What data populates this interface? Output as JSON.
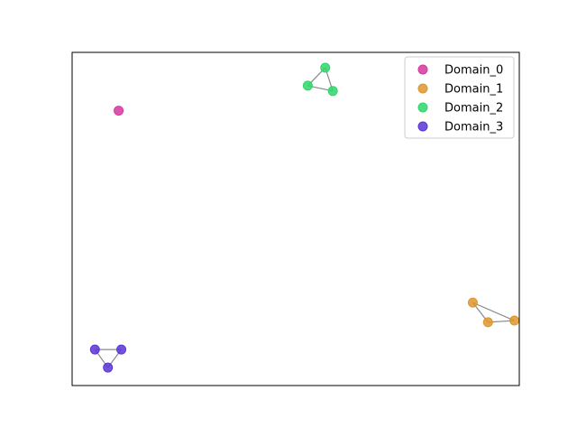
{
  "chart_data": {
    "type": "scatter",
    "title": "",
    "xlabel": "",
    "ylabel": "",
    "axes_visible": false,
    "grid": false,
    "xlim": [
      0,
      10
    ],
    "ylim": [
      0,
      10
    ],
    "legend": {
      "placement": "top-right",
      "entries": [
        "Domain_0",
        "Domain_1",
        "Domain_2",
        "Domain_3"
      ]
    },
    "series": [
      {
        "name": "Domain_0",
        "color": "#d6379f",
        "points": [
          [
            1.04,
            8.25
          ]
        ]
      },
      {
        "name": "Domain_1",
        "color": "#de962e",
        "points": [
          [
            8.96,
            2.49
          ],
          [
            9.3,
            1.9
          ],
          [
            9.89,
            1.95
          ]
        ]
      },
      {
        "name": "Domain_2",
        "color": "#2fd66b",
        "points": [
          [
            5.66,
            9.54
          ],
          [
            5.27,
            9.0
          ],
          [
            5.83,
            8.84
          ]
        ]
      },
      {
        "name": "Domain_3",
        "color": "#5a34d6",
        "points": [
          [
            0.51,
            1.08
          ],
          [
            1.1,
            1.08
          ],
          [
            0.8,
            0.54
          ]
        ]
      }
    ],
    "edges": [
      {
        "series": "Domain_1",
        "pairs": [
          [
            0,
            1
          ],
          [
            1,
            2
          ],
          [
            0,
            2
          ]
        ]
      },
      {
        "series": "Domain_2",
        "pairs": [
          [
            0,
            1
          ],
          [
            1,
            2
          ],
          [
            0,
            2
          ]
        ]
      },
      {
        "series": "Domain_3",
        "pairs": [
          [
            0,
            1
          ],
          [
            1,
            2
          ],
          [
            0,
            2
          ]
        ]
      }
    ]
  }
}
